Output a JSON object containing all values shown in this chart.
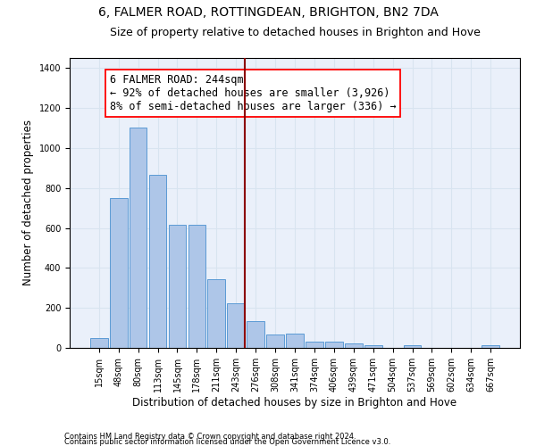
{
  "title1": "6, FALMER ROAD, ROTTINGDEAN, BRIGHTON, BN2 7DA",
  "title2": "Size of property relative to detached houses in Brighton and Hove",
  "xlabel": "Distribution of detached houses by size in Brighton and Hove",
  "ylabel": "Number of detached properties",
  "footnote1": "Contains HM Land Registry data © Crown copyright and database right 2024.",
  "footnote2": "Contains public sector information licensed under the Open Government Licence v3.0.",
  "bar_labels": [
    "15sqm",
    "48sqm",
    "80sqm",
    "113sqm",
    "145sqm",
    "178sqm",
    "211sqm",
    "243sqm",
    "276sqm",
    "308sqm",
    "341sqm",
    "374sqm",
    "406sqm",
    "439sqm",
    "471sqm",
    "504sqm",
    "537sqm",
    "569sqm",
    "602sqm",
    "634sqm",
    "667sqm"
  ],
  "bar_values": [
    50,
    750,
    1100,
    865,
    615,
    615,
    345,
    225,
    135,
    65,
    70,
    30,
    30,
    22,
    15,
    0,
    12,
    0,
    0,
    0,
    12
  ],
  "bar_color": "#aec6e8",
  "bar_edge_color": "#5b9bd5",
  "vline_color": "#8b0000",
  "annotation_title": "6 FALMER ROAD: 244sqm",
  "annotation_line1": "← 92% of detached houses are smaller (3,926)",
  "annotation_line2": "8% of semi-detached houses are larger (336) →",
  "ylim": [
    0,
    1450
  ],
  "background_color": "#eaf0fa",
  "grid_color": "#d8e4f0",
  "title1_fontsize": 10,
  "title2_fontsize": 9,
  "xlabel_fontsize": 8.5,
  "ylabel_fontsize": 8.5,
  "tick_fontsize": 7,
  "annotation_fontsize": 8.5
}
